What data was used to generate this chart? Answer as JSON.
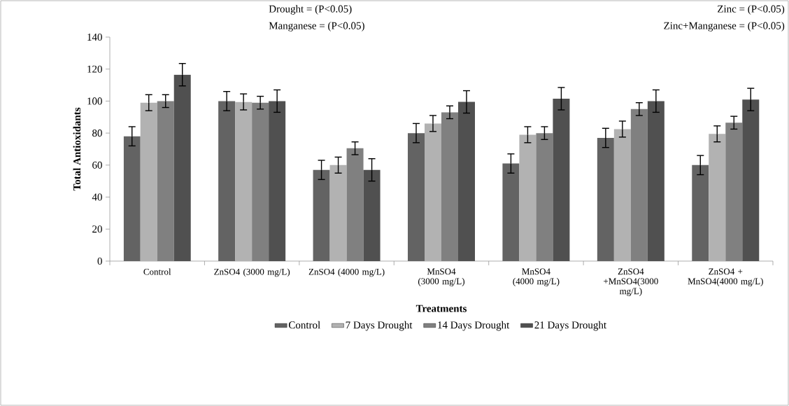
{
  "chart_data": {
    "type": "bar",
    "xlabel": "Treatments",
    "ylabel": "Total Antioxidants",
    "categories": [
      "Control",
      "ZnSO4 (3000 mg/L)",
      "ZnSO4 (4000 mg/L)",
      "MnSO4 (3000 mg/L)",
      "MnSO4 (4000 mg/L)",
      "ZnSO4 +MnSO4(3000 mg/L)",
      "ZnSO4 + MnSO4(4000 mg/L)"
    ],
    "series": [
      {
        "name": "Control",
        "color": "#636363",
        "values": [
          78,
          100,
          57,
          80,
          61,
          77,
          60
        ],
        "errors": [
          6,
          6,
          6,
          6,
          6,
          6,
          6
        ]
      },
      {
        "name": "7 Days Drought",
        "color": "#b2b2b2",
        "values": [
          99,
          99.5,
          60,
          86,
          79,
          82.5,
          79.5
        ],
        "errors": [
          5,
          5,
          5,
          5,
          5,
          5,
          5
        ]
      },
      {
        "name": "14 Days Drought",
        "color": "#808080",
        "values": [
          100,
          99,
          70.5,
          93,
          80,
          95,
          86.5
        ],
        "errors": [
          4,
          4,
          4,
          4,
          4,
          4,
          4
        ]
      },
      {
        "name": "21 Days Drought",
        "color": "#505050",
        "values": [
          116.5,
          100,
          57,
          99.5,
          101.5,
          100,
          101
        ],
        "errors": [
          7,
          7,
          7,
          7,
          7,
          7,
          7
        ]
      }
    ],
    "ylim": [
      0,
      140
    ],
    "yticks": [
      0,
      20,
      40,
      60,
      80,
      100,
      120,
      140
    ],
    "grid": false,
    "legend": "bottom",
    "annotations": [
      "Drought = (P<0.05)",
      "Manganese = (P<0.05)",
      "Zinc = (P<0.05)",
      "Zinc+Manganese = (P<0.05)"
    ]
  }
}
